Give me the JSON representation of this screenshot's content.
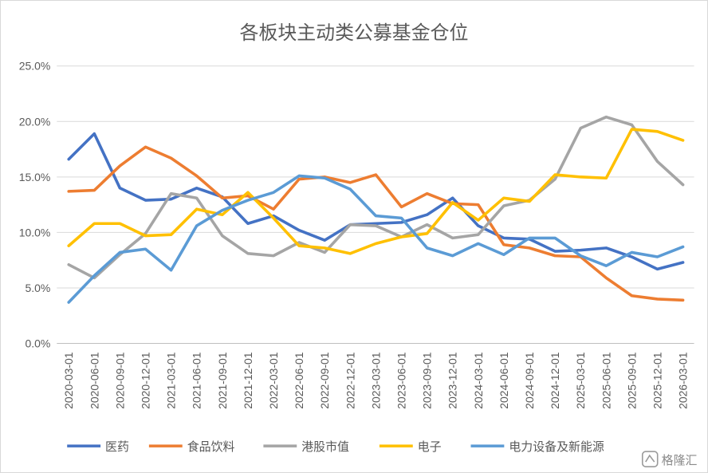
{
  "chart_data": {
    "type": "line",
    "title": "各板块主动类公募基金仓位",
    "xlabel": "",
    "ylabel": "",
    "x": [
      "2020-03-01",
      "2020-06-01",
      "2020-09-01",
      "2020-12-01",
      "2021-03-01",
      "2021-06-01",
      "2021-09-01",
      "2021-12-01",
      "2022-03-01",
      "2022-06-01",
      "2022-09-01",
      "2022-12-01",
      "2023-03-01",
      "2023-06-01",
      "2023-09-01",
      "2023-12-01",
      "2024-03-01",
      "2024-06-01",
      "2024-09-01",
      "2024-12-01",
      "2025-03-01",
      "2025-06-01",
      "2025-09-01",
      "2025-12-01",
      "2026-03-01"
    ],
    "ylim": [
      0,
      0.25
    ],
    "yticks": [
      {
        "value": 0.0,
        "label": "0.0%"
      },
      {
        "value": 0.05,
        "label": "5.0%"
      },
      {
        "value": 0.1,
        "label": "10.0%"
      },
      {
        "value": 0.15,
        "label": "15.0%"
      },
      {
        "value": 0.2,
        "label": "20.0%"
      },
      {
        "value": 0.25,
        "label": "25.0%"
      }
    ],
    "grid": true,
    "legend": "bottom",
    "series": [
      {
        "name": "医药",
        "color": "#4472C4",
        "values": [
          0.166,
          0.189,
          0.14,
          0.129,
          0.13,
          0.14,
          0.132,
          0.108,
          0.115,
          0.102,
          0.093,
          0.107,
          0.108,
          0.109,
          0.116,
          0.131,
          0.106,
          0.095,
          0.094,
          0.083,
          0.084,
          0.086,
          0.078,
          0.067,
          0.073
        ]
      },
      {
        "name": "食品饮料",
        "color": "#ED7D31",
        "values": [
          0.137,
          0.138,
          0.16,
          0.177,
          0.167,
          0.151,
          0.131,
          0.133,
          0.121,
          0.148,
          0.15,
          0.145,
          0.152,
          0.123,
          0.135,
          0.126,
          0.125,
          0.089,
          0.086,
          0.079,
          0.078,
          0.059,
          0.043,
          0.04,
          0.039
        ]
      },
      {
        "name": "港股市值",
        "color": "#A5A5A5",
        "values": [
          0.071,
          0.059,
          0.08,
          0.099,
          0.135,
          0.131,
          0.097,
          0.081,
          0.079,
          0.091,
          0.082,
          0.107,
          0.106,
          0.096,
          0.107,
          0.095,
          0.098,
          0.124,
          0.129,
          0.148,
          0.194,
          0.204,
          0.197,
          0.164,
          0.143
        ]
      },
      {
        "name": "电子",
        "color": "#FFC000",
        "values": [
          0.088,
          0.108,
          0.108,
          0.097,
          0.098,
          0.121,
          0.116,
          0.136,
          0.113,
          0.088,
          0.086,
          0.081,
          0.09,
          0.096,
          0.099,
          0.127,
          0.111,
          0.131,
          0.128,
          0.152,
          0.15,
          0.149,
          0.193,
          0.191,
          0.183
        ]
      },
      {
        "name": "电力设备及新能源",
        "color": "#5B9BD5",
        "values": [
          0.037,
          0.061,
          0.082,
          0.085,
          0.066,
          0.106,
          0.12,
          0.129,
          0.136,
          0.151,
          0.149,
          0.139,
          0.115,
          0.113,
          0.086,
          0.079,
          0.09,
          0.08,
          0.095,
          0.095,
          0.079,
          0.07,
          0.082,
          0.078,
          0.087
        ]
      }
    ]
  },
  "watermark": {
    "text": "格隆汇",
    "icon": "gelonghui-logo-icon"
  }
}
